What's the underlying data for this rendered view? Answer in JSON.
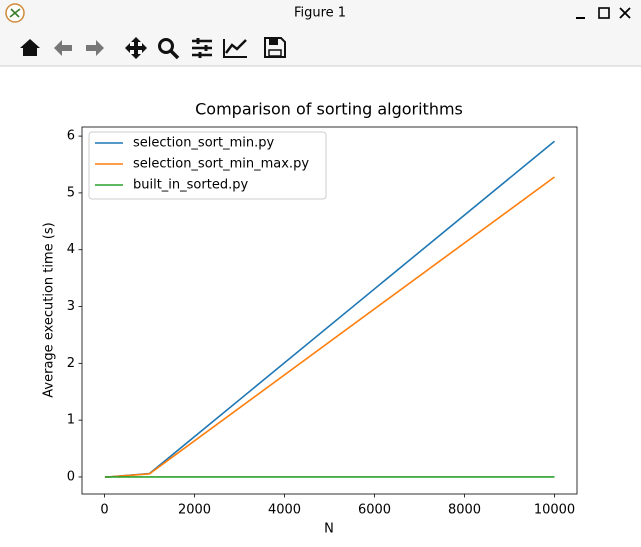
{
  "window": {
    "title": "Figure 1"
  },
  "chart_data": {
    "type": "line",
    "title": "Comparison of sorting algorithms",
    "x_label": "N",
    "y_label": "Average execution time (s)",
    "x": [
      10,
      100,
      1000,
      10000
    ],
    "series": [
      {
        "name": "selection_sort_min.py",
        "color": "#1f77b4",
        "values": [
          0,
          0.001,
          0.06,
          5.91
        ]
      },
      {
        "name": "selection_sort_min_max.py",
        "color": "#ff7f0e",
        "values": [
          0,
          0.001,
          0.055,
          5.28
        ]
      },
      {
        "name": "built_in_sorted.py",
        "color": "#2ca02c",
        "values": [
          0,
          0,
          0,
          0.001
        ]
      }
    ],
    "xlim": [
      -500,
      10500
    ],
    "ylim": [
      -0.3,
      6.16
    ],
    "xticks": [
      0,
      2000,
      4000,
      6000,
      8000,
      10000
    ],
    "yticks": [
      0,
      1,
      2,
      3,
      4,
      5,
      6
    ],
    "legend": "upper left",
    "grid": false
  }
}
